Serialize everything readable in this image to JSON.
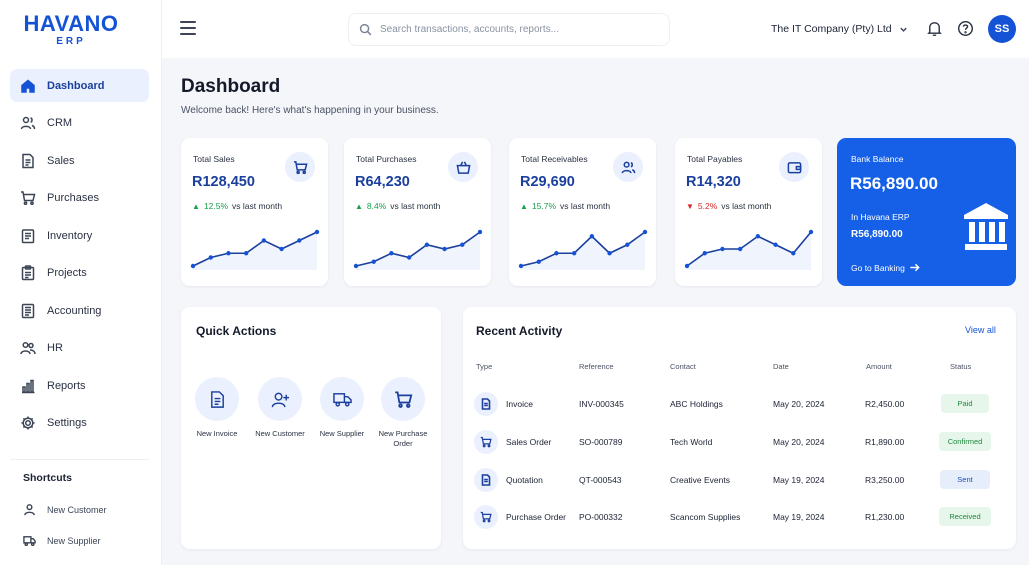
{
  "logo": {
    "main": "HAVANO",
    "sub": "ERP"
  },
  "sidebar": {
    "items": [
      {
        "label": "Dashboard",
        "icon": "home-icon",
        "active": true
      },
      {
        "label": "CRM",
        "icon": "users-icon"
      },
      {
        "label": "Sales",
        "icon": "document-icon"
      },
      {
        "label": "Purchases",
        "icon": "cart-icon"
      },
      {
        "label": "Inventory",
        "icon": "clipboard-icon"
      },
      {
        "label": "Projects",
        "icon": "clipboard-list-icon"
      },
      {
        "label": "Accounting",
        "icon": "ledger-icon"
      },
      {
        "label": "HR",
        "icon": "team-icon"
      },
      {
        "label": "Reports",
        "icon": "bar-chart-icon"
      },
      {
        "label": "Settings",
        "icon": "gear-icon"
      }
    ],
    "shortcuts_title": "Shortcuts",
    "shortcuts": [
      {
        "label": "New Customer",
        "icon": "user-icon"
      },
      {
        "label": "New Supplier",
        "icon": "truck-icon"
      }
    ]
  },
  "header": {
    "search_placeholder": "Search transactions, accounts, reports...",
    "company": "The IT Company (Pty) Ltd",
    "avatar_initials": "SS"
  },
  "page": {
    "title": "Dashboard",
    "subtitle": "Welcome back! Here's what's happening in your business."
  },
  "cards": [
    {
      "label": "Total Sales",
      "value": "R128,450",
      "trend_dir": "up",
      "trend_pct": "12.5%",
      "trend_text": "vs last month",
      "icon": "cart-icon",
      "sparkline": [
        2,
        4,
        5,
        5,
        8,
        6,
        8,
        10
      ]
    },
    {
      "label": "Total Purchases",
      "value": "R64,230",
      "trend_dir": "up",
      "trend_pct": "8.4%",
      "trend_text": "vs last month",
      "icon": "basket-icon",
      "sparkline": [
        2,
        3,
        5,
        4,
        7,
        6,
        7,
        10
      ]
    },
    {
      "label": "Total Receivables",
      "value": "R29,690",
      "trend_dir": "up",
      "trend_pct": "15.7%",
      "trend_text": "vs last month",
      "icon": "users-icon",
      "sparkline": [
        2,
        3,
        5,
        5,
        9,
        5,
        7,
        10
      ]
    },
    {
      "label": "Total Payables",
      "value": "R14,320",
      "trend_dir": "down",
      "trend_pct": "5.2%",
      "trend_text": "vs last month",
      "icon": "wallet-icon",
      "sparkline": [
        2,
        5,
        6,
        6,
        9,
        7,
        5,
        10
      ]
    }
  ],
  "bank": {
    "label": "Bank Balance",
    "value": "R56,890.00",
    "sub_label": "In Havana ERP",
    "sub_value": "R56,890.00",
    "link": "Go to Banking"
  },
  "quick_actions": {
    "title": "Quick Actions",
    "items": [
      {
        "label": "New Invoice",
        "icon": "invoice-icon"
      },
      {
        "label": "New Customer",
        "icon": "add-user-icon"
      },
      {
        "label": "New Supplier",
        "icon": "truck-icon"
      },
      {
        "label": "New Purchase Order",
        "icon": "cart-icon"
      }
    ]
  },
  "activity": {
    "title": "Recent Activity",
    "view_all": "View all",
    "columns": [
      "Type",
      "Reference",
      "Contact",
      "Date",
      "Amount",
      "Status"
    ],
    "rows": [
      {
        "type": "Invoice",
        "icon": "invoice-icon",
        "reference": "INV-000345",
        "contact": "ABC Holdings",
        "date": "May 20, 2024",
        "amount": "R2,450.00",
        "status": "Paid",
        "status_kind": "green"
      },
      {
        "type": "Sales Order",
        "icon": "cart-icon",
        "reference": "SO-000789",
        "contact": "Tech World",
        "date": "May 20, 2024",
        "amount": "R1,890.00",
        "status": "Confirmed",
        "status_kind": "green"
      },
      {
        "type": "Quotation",
        "icon": "invoice-icon",
        "reference": "QT-000543",
        "contact": "Creative Events",
        "date": "May 19, 2024",
        "amount": "R3,250.00",
        "status": "Sent",
        "status_kind": "blue"
      },
      {
        "type": "Purchase Order",
        "icon": "cart-icon",
        "reference": "PO-000332",
        "contact": "Scancom Supplies",
        "date": "May 19, 2024",
        "amount": "R1,230.00",
        "status": "Received",
        "status_kind": "green"
      }
    ]
  },
  "colors": {
    "brand": "#1553d6",
    "bank_card": "#1660e8",
    "positive": "#19a04a",
    "negative": "#d72b2b",
    "status_green_bg": "#e6f6ea",
    "status_green_fg": "#1f8a3d",
    "status_blue_bg": "#e6eefc",
    "status_blue_fg": "#1a4fb8"
  }
}
